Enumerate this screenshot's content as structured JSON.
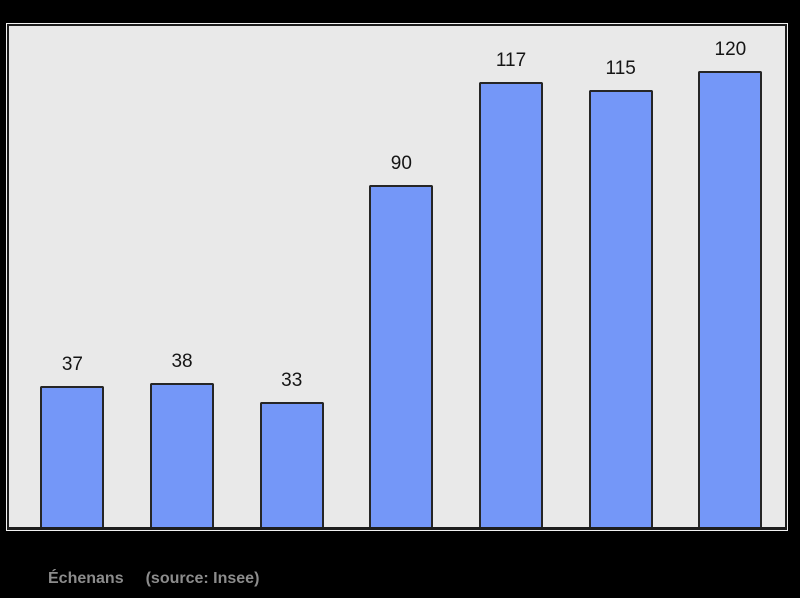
{
  "chart_data": {
    "type": "bar",
    "values": [
      37,
      38,
      33,
      90,
      117,
      115,
      120
    ],
    "bar_count": 7,
    "title": "",
    "xlabel": "",
    "ylabel": "",
    "ylim": [
      0,
      132
    ],
    "grid": false,
    "legend": "none",
    "bar_value_labels": [
      "37",
      "38",
      "33",
      "90",
      "117",
      "115",
      "120"
    ]
  },
  "caption": {
    "commune": "Échenans",
    "source": "(source: Insee)"
  },
  "colors": {
    "page_bg": "#000000",
    "panel_bg": "#e9e9e9",
    "panel_border": "#1d1d1d",
    "panel_outline": "#f2f2f2",
    "bar_fill": "#7497f8",
    "bar_border": "#262626",
    "value_label": "#151515",
    "caption_text": "#8c8c8c"
  }
}
